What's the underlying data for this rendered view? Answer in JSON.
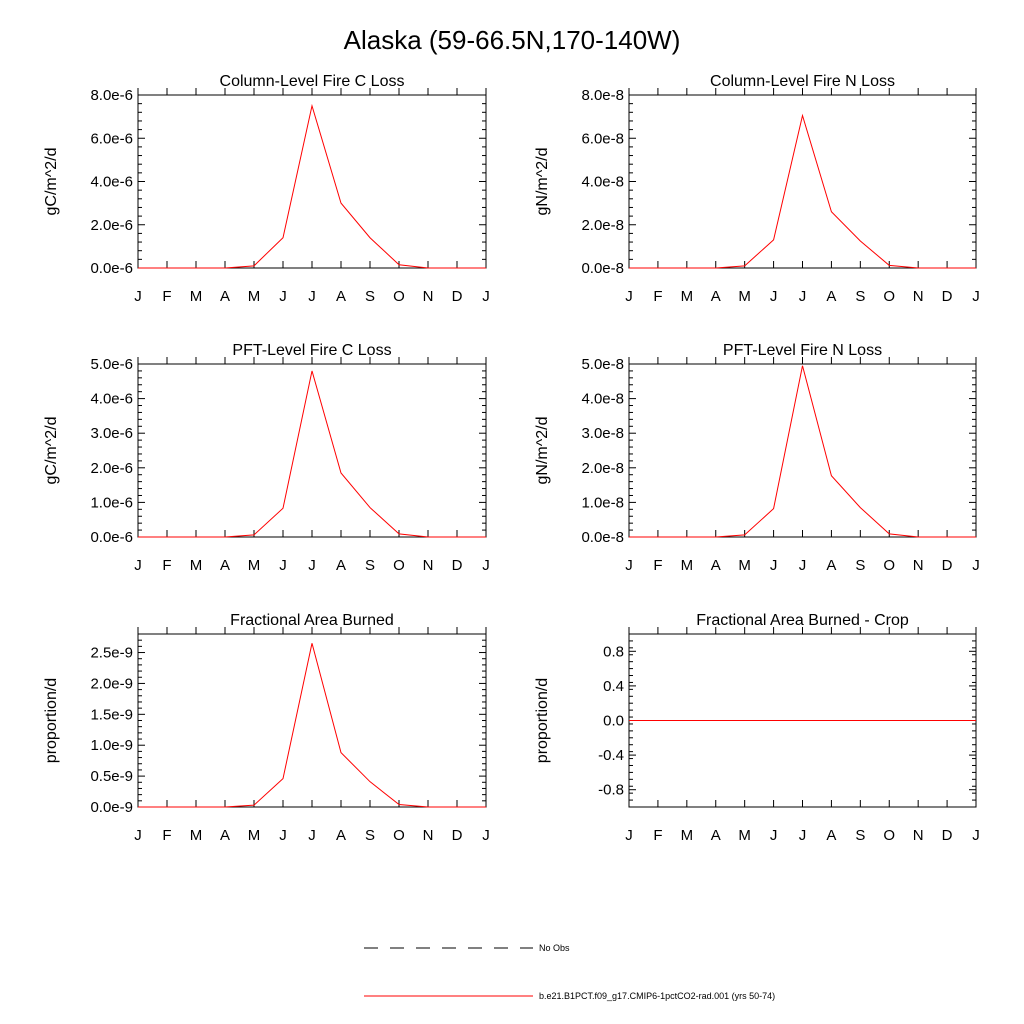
{
  "figure": {
    "title": "Alaska (59-66.5N,170-140W)"
  },
  "chart_data": [
    {
      "type": "line",
      "title": "Column-Level Fire C Loss",
      "xlabel": "",
      "ylabel": "gC/m^2/d",
      "x": [
        "J",
        "F",
        "M",
        "A",
        "M",
        "J",
        "J",
        "A",
        "S",
        "O",
        "N",
        "D",
        "J"
      ],
      "ylim": [
        0,
        8e-06
      ],
      "yticks": [
        0,
        2e-06,
        4e-06,
        6e-06,
        8e-06
      ],
      "yticklabels": [
        "0.0e-6",
        "2.0e-6",
        "4.0e-6",
        "6.0e-6",
        "8.0e-6"
      ],
      "series": [
        {
          "name": "b.e21.B1PCT.f09_g17.CMIP6-1pctCO2-rad.001 (yrs 50-74)",
          "color": "#ff0000",
          "values": [
            0,
            0,
            0,
            0,
            1e-07,
            1.4e-06,
            7.5e-06,
            3e-06,
            1.4e-06,
            1.5e-07,
            0,
            0,
            0
          ]
        }
      ]
    },
    {
      "type": "line",
      "title": "Column-Level Fire N Loss",
      "xlabel": "",
      "ylabel": "gN/m^2/d",
      "x": [
        "J",
        "F",
        "M",
        "A",
        "M",
        "J",
        "J",
        "A",
        "S",
        "O",
        "N",
        "D",
        "J"
      ],
      "ylim": [
        0,
        8e-08
      ],
      "yticks": [
        0,
        2e-08,
        4e-08,
        6e-08,
        8e-08
      ],
      "yticklabels": [
        "0.0e-8",
        "2.0e-8",
        "4.0e-8",
        "6.0e-8",
        "8.0e-8"
      ],
      "series": [
        {
          "name": "b.e21.B1PCT.f09_g17.CMIP6-1pctCO2-rad.001 (yrs 50-74)",
          "color": "#ff0000",
          "values": [
            0,
            0,
            0,
            0,
            1e-09,
            1.3e-08,
            7.05e-08,
            2.6e-08,
            1.25e-08,
            1.2e-09,
            0,
            0,
            0
          ]
        }
      ]
    },
    {
      "type": "line",
      "title": "PFT-Level Fire C Loss",
      "xlabel": "",
      "ylabel": "gC/m^2/d",
      "x": [
        "J",
        "F",
        "M",
        "A",
        "M",
        "J",
        "J",
        "A",
        "S",
        "O",
        "N",
        "D",
        "J"
      ],
      "ylim": [
        0,
        5e-06
      ],
      "yticks": [
        0,
        1e-06,
        2e-06,
        3e-06,
        4e-06,
        5e-06
      ],
      "yticklabels": [
        "0.0e-6",
        "1.0e-6",
        "2.0e-6",
        "3.0e-6",
        "4.0e-6",
        "5.0e-6"
      ],
      "series": [
        {
          "name": "b.e21.B1PCT.f09_g17.CMIP6-1pctCO2-rad.001 (yrs 50-74)",
          "color": "#ff0000",
          "values": [
            0,
            0,
            0,
            0,
            6e-08,
            8.3e-07,
            4.8e-06,
            1.85e-06,
            8.5e-07,
            9e-08,
            0,
            0,
            0
          ]
        }
      ]
    },
    {
      "type": "line",
      "title": "PFT-Level Fire N Loss",
      "xlabel": "",
      "ylabel": "gN/m^2/d",
      "x": [
        "J",
        "F",
        "M",
        "A",
        "M",
        "J",
        "J",
        "A",
        "S",
        "O",
        "N",
        "D",
        "J"
      ],
      "ylim": [
        0,
        5e-08
      ],
      "yticks": [
        0,
        1e-08,
        2e-08,
        3e-08,
        4e-08,
        5e-08
      ],
      "yticklabels": [
        "0.0e-8",
        "1.0e-8",
        "2.0e-8",
        "3.0e-8",
        "4.0e-8",
        "5.0e-8"
      ],
      "series": [
        {
          "name": "b.e21.B1PCT.f09_g17.CMIP6-1pctCO2-rad.001 (yrs 50-74)",
          "color": "#ff0000",
          "values": [
            0,
            0,
            0,
            0,
            6e-10,
            8.2e-09,
            4.95e-08,
            1.77e-08,
            8.5e-09,
            9e-10,
            0,
            0,
            0
          ]
        }
      ]
    },
    {
      "type": "line",
      "title": "Fractional Area Burned",
      "xlabel": "",
      "ylabel": "proportion/d",
      "x": [
        "J",
        "F",
        "M",
        "A",
        "M",
        "J",
        "J",
        "A",
        "S",
        "O",
        "N",
        "D",
        "J"
      ],
      "ylim": [
        0,
        2.8e-09
      ],
      "yticks": [
        0,
        5e-10,
        1e-09,
        1.5e-09,
        2e-09,
        2.5e-09
      ],
      "yticklabels": [
        "0.0e-9",
        "0.5e-9",
        "1.0e-9",
        "1.5e-9",
        "2.0e-9",
        "2.5e-9"
      ],
      "series": [
        {
          "name": "b.e21.B1PCT.f09_g17.CMIP6-1pctCO2-rad.001 (yrs 50-74)",
          "color": "#ff0000",
          "values": [
            0,
            0,
            0,
            0,
            3e-11,
            4.6e-10,
            2.65e-09,
            8.8e-10,
            4.1e-10,
            4e-11,
            0,
            0,
            0
          ]
        }
      ]
    },
    {
      "type": "line",
      "title": "Fractional Area Burned - Crop",
      "xlabel": "",
      "ylabel": "proportion/d",
      "x": [
        "J",
        "F",
        "M",
        "A",
        "M",
        "J",
        "J",
        "A",
        "S",
        "O",
        "N",
        "D",
        "J"
      ],
      "ylim": [
        -1.0,
        1.0
      ],
      "yticks": [
        -0.8,
        -0.4,
        0.0,
        0.4,
        0.8
      ],
      "yticklabels": [
        "-0.8",
        "-0.4",
        "0.0",
        "0.4",
        "0.8"
      ],
      "series": [
        {
          "name": "b.e21.B1PCT.f09_g17.CMIP6-1pctCO2-rad.001 (yrs 50-74)",
          "color": "#ff0000",
          "values": [
            0,
            0,
            0,
            0,
            0,
            0,
            0,
            0,
            0,
            0,
            0,
            0,
            0
          ]
        }
      ]
    }
  ],
  "legend": {
    "items": [
      {
        "label": "No Obs",
        "style": "dashed",
        "color": "#000000"
      },
      {
        "label": "b.e21.B1PCT.f09_g17.CMIP6-1pctCO2-rad.001 (yrs 50-74)",
        "style": "solid",
        "color": "#ff0000"
      }
    ]
  }
}
